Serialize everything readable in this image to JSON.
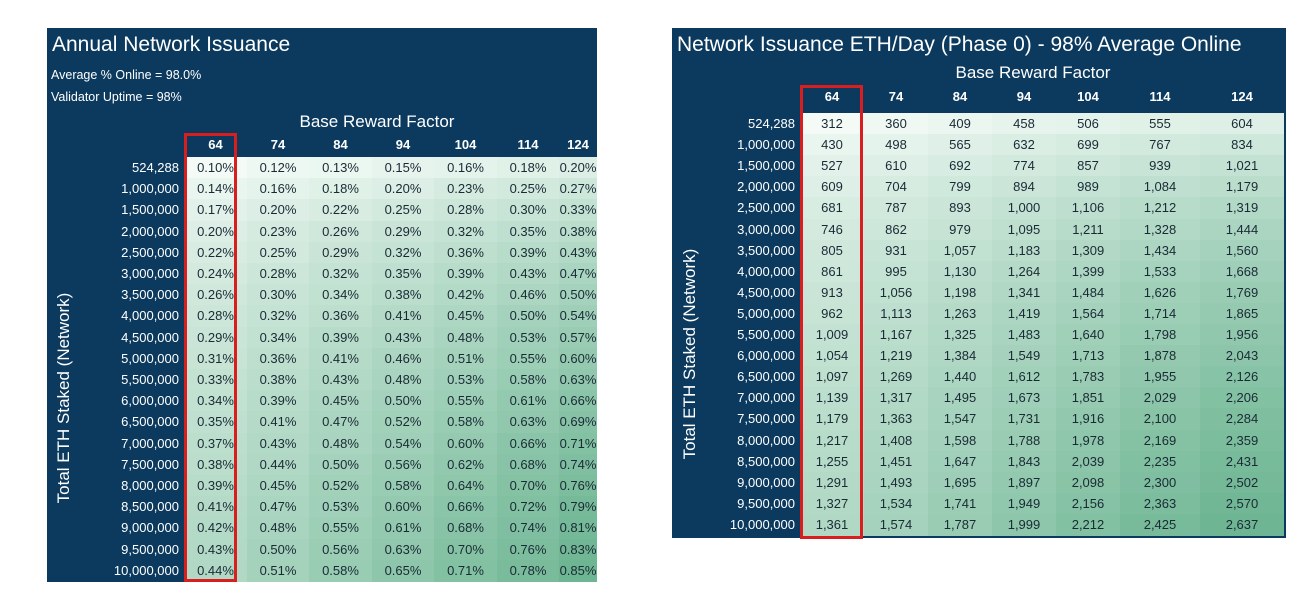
{
  "chart_data": [
    {
      "type": "table",
      "title": "Annual Network Issuance",
      "notes": [
        "Average % Online = 98.0%",
        "Validator Uptime = 98%"
      ],
      "column_axis_label": "Base Reward Factor",
      "row_axis_label": "Total ETH Staked (Network)",
      "highlighted_column": "64",
      "columns": [
        "64",
        "74",
        "84",
        "94",
        "104",
        "114",
        "124"
      ],
      "rows": [
        "524,288",
        "1,000,000",
        "1,500,000",
        "2,000,000",
        "2,500,000",
        "3,000,000",
        "3,500,000",
        "4,000,000",
        "4,500,000",
        "5,000,000",
        "5,500,000",
        "6,000,000",
        "6,500,000",
        "7,000,000",
        "7,500,000",
        "8,000,000",
        "8,500,000",
        "9,000,000",
        "9,500,000",
        "10,000,000"
      ],
      "values": [
        [
          "0.10%",
          "0.12%",
          "0.13%",
          "0.15%",
          "0.16%",
          "0.18%",
          "0.20%"
        ],
        [
          "0.14%",
          "0.16%",
          "0.18%",
          "0.20%",
          "0.23%",
          "0.25%",
          "0.27%"
        ],
        [
          "0.17%",
          "0.20%",
          "0.22%",
          "0.25%",
          "0.28%",
          "0.30%",
          "0.33%"
        ],
        [
          "0.20%",
          "0.23%",
          "0.26%",
          "0.29%",
          "0.32%",
          "0.35%",
          "0.38%"
        ],
        [
          "0.22%",
          "0.25%",
          "0.29%",
          "0.32%",
          "0.36%",
          "0.39%",
          "0.43%"
        ],
        [
          "0.24%",
          "0.28%",
          "0.32%",
          "0.35%",
          "0.39%",
          "0.43%",
          "0.47%"
        ],
        [
          "0.26%",
          "0.30%",
          "0.34%",
          "0.38%",
          "0.42%",
          "0.46%",
          "0.50%"
        ],
        [
          "0.28%",
          "0.32%",
          "0.36%",
          "0.41%",
          "0.45%",
          "0.50%",
          "0.54%"
        ],
        [
          "0.29%",
          "0.34%",
          "0.39%",
          "0.43%",
          "0.48%",
          "0.53%",
          "0.57%"
        ],
        [
          "0.31%",
          "0.36%",
          "0.41%",
          "0.46%",
          "0.51%",
          "0.55%",
          "0.60%"
        ],
        [
          "0.33%",
          "0.38%",
          "0.43%",
          "0.48%",
          "0.53%",
          "0.58%",
          "0.63%"
        ],
        [
          "0.34%",
          "0.39%",
          "0.45%",
          "0.50%",
          "0.55%",
          "0.61%",
          "0.66%"
        ],
        [
          "0.35%",
          "0.41%",
          "0.47%",
          "0.52%",
          "0.58%",
          "0.63%",
          "0.69%"
        ],
        [
          "0.37%",
          "0.43%",
          "0.48%",
          "0.54%",
          "0.60%",
          "0.66%",
          "0.71%"
        ],
        [
          "0.38%",
          "0.44%",
          "0.50%",
          "0.56%",
          "0.62%",
          "0.68%",
          "0.74%"
        ],
        [
          "0.39%",
          "0.45%",
          "0.52%",
          "0.58%",
          "0.64%",
          "0.70%",
          "0.76%"
        ],
        [
          "0.41%",
          "0.47%",
          "0.53%",
          "0.60%",
          "0.66%",
          "0.72%",
          "0.79%"
        ],
        [
          "0.42%",
          "0.48%",
          "0.55%",
          "0.61%",
          "0.68%",
          "0.74%",
          "0.81%"
        ],
        [
          "0.43%",
          "0.50%",
          "0.56%",
          "0.63%",
          "0.70%",
          "0.76%",
          "0.83%"
        ],
        [
          "0.44%",
          "0.51%",
          "0.58%",
          "0.65%",
          "0.71%",
          "0.78%",
          "0.85%"
        ]
      ]
    },
    {
      "type": "table",
      "title": "Network Issuance ETH/Day (Phase 0) - 98% Average Online",
      "column_axis_label": "Base Reward Factor",
      "row_axis_label": "Total ETH Staked (Network)",
      "highlighted_column": "64",
      "columns": [
        "64",
        "74",
        "84",
        "94",
        "104",
        "114",
        "124"
      ],
      "rows": [
        "524,288",
        "1,000,000",
        "1,500,000",
        "2,000,000",
        "2,500,000",
        "3,000,000",
        "3,500,000",
        "4,000,000",
        "4,500,000",
        "5,000,000",
        "5,500,000",
        "6,000,000",
        "6,500,000",
        "7,000,000",
        "7,500,000",
        "8,000,000",
        "8,500,000",
        "9,000,000",
        "9,500,000",
        "10,000,000"
      ],
      "values": [
        [
          "312",
          "360",
          "409",
          "458",
          "506",
          "555",
          "604"
        ],
        [
          "430",
          "498",
          "565",
          "632",
          "699",
          "767",
          "834"
        ],
        [
          "527",
          "610",
          "692",
          "774",
          "857",
          "939",
          "1,021"
        ],
        [
          "609",
          "704",
          "799",
          "894",
          "989",
          "1,084",
          "1,179"
        ],
        [
          "681",
          "787",
          "893",
          "1,000",
          "1,106",
          "1,212",
          "1,319"
        ],
        [
          "746",
          "862",
          "979",
          "1,095",
          "1,211",
          "1,328",
          "1,444"
        ],
        [
          "805",
          "931",
          "1,057",
          "1,183",
          "1,309",
          "1,434",
          "1,560"
        ],
        [
          "861",
          "995",
          "1,130",
          "1,264",
          "1,399",
          "1,533",
          "1,668"
        ],
        [
          "913",
          "1,056",
          "1,198",
          "1,341",
          "1,484",
          "1,626",
          "1,769"
        ],
        [
          "962",
          "1,113",
          "1,263",
          "1,419",
          "1,564",
          "1,714",
          "1,865"
        ],
        [
          "1,009",
          "1,167",
          "1,325",
          "1,483",
          "1,640",
          "1,798",
          "1,956"
        ],
        [
          "1,054",
          "1,219",
          "1,384",
          "1,549",
          "1,713",
          "1,878",
          "2,043"
        ],
        [
          "1,097",
          "1,269",
          "1,440",
          "1,612",
          "1,783",
          "1,955",
          "2,126"
        ],
        [
          "1,139",
          "1,317",
          "1,495",
          "1,673",
          "1,851",
          "2,029",
          "2,206"
        ],
        [
          "1,179",
          "1,363",
          "1,547",
          "1,731",
          "1,916",
          "2,100",
          "2,284"
        ],
        [
          "1,217",
          "1,408",
          "1,598",
          "1,788",
          "1,978",
          "2,169",
          "2,359"
        ],
        [
          "1,255",
          "1,451",
          "1,647",
          "1,843",
          "2,039",
          "2,235",
          "2,431"
        ],
        [
          "1,291",
          "1,493",
          "1,695",
          "1,897",
          "2,098",
          "2,300",
          "2,502"
        ],
        [
          "1,327",
          "1,534",
          "1,741",
          "1,949",
          "2,156",
          "2,363",
          "2,570"
        ],
        [
          "1,361",
          "1,574",
          "1,787",
          "1,999",
          "2,212",
          "2,425",
          "2,637"
        ]
      ]
    }
  ],
  "colors": {
    "panel": "#0b3a5e",
    "highlight": "#d81e1e",
    "cell_light": "#f4fbf7",
    "cell_dark": "#5fae88"
  }
}
